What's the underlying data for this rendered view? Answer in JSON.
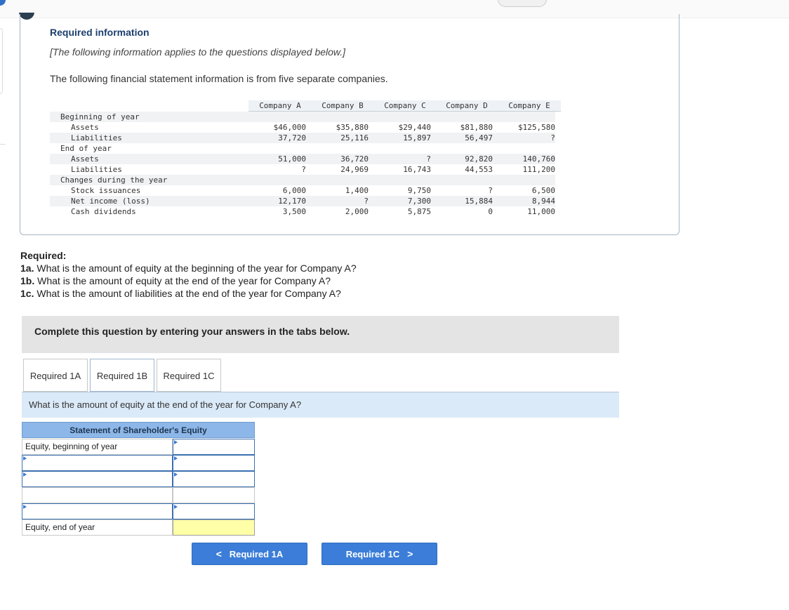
{
  "info": {
    "title": "Required information",
    "note": "[The following information applies to the questions displayed below.]",
    "description": "The following financial statement information is from five separate companies."
  },
  "financials": {
    "companies": [
      "Company A",
      "Company B",
      "Company C",
      "Company D",
      "Company E"
    ],
    "rows": [
      {
        "label": "Beginning of year",
        "indent": 0,
        "values": [
          "",
          "",
          "",
          "",
          ""
        ]
      },
      {
        "label": "Assets",
        "indent": 1,
        "values": [
          "$46,000",
          "$35,880",
          "$29,440",
          "$81,880",
          "$125,580"
        ]
      },
      {
        "label": "Liabilities",
        "indent": 1,
        "values": [
          "37,720",
          "25,116",
          "15,897",
          "56,497",
          "?"
        ]
      },
      {
        "label": "End of year",
        "indent": 0,
        "values": [
          "",
          "",
          "",
          "",
          ""
        ]
      },
      {
        "label": "Assets",
        "indent": 1,
        "values": [
          "51,000",
          "36,720",
          "?",
          "92,820",
          "140,760"
        ]
      },
      {
        "label": "Liabilities",
        "indent": 1,
        "values": [
          "?",
          "24,969",
          "16,743",
          "44,553",
          "111,200"
        ]
      },
      {
        "label": "Changes during the year",
        "indent": 0,
        "values": [
          "",
          "",
          "",
          "",
          ""
        ]
      },
      {
        "label": "Stock issuances",
        "indent": 1,
        "values": [
          "6,000",
          "1,400",
          "9,750",
          "?",
          "6,500"
        ]
      },
      {
        "label": "Net income (loss)",
        "indent": 1,
        "values": [
          "12,170",
          "?",
          "7,300",
          "15,884",
          "8,944"
        ]
      },
      {
        "label": "Cash dividends",
        "indent": 1,
        "values": [
          "3,500",
          "2,000",
          "5,875",
          "0",
          "11,000"
        ]
      }
    ]
  },
  "required": {
    "heading": "Required:",
    "items": [
      {
        "tag": "1a.",
        "text": " What is the amount of equity at the beginning of the year for Company A?"
      },
      {
        "tag": "1b.",
        "text": " What is the amount of equity at the end of the year for Company A?"
      },
      {
        "tag": "1c.",
        "text": " What is the amount of liabilities at the end of the year for Company A?"
      }
    ]
  },
  "banner": "Complete this question by entering your answers in the tabs below.",
  "tabs": [
    {
      "label": "Required 1A",
      "active": false
    },
    {
      "label": "Required 1B",
      "active": true
    },
    {
      "label": "Required 1C",
      "active": false
    }
  ],
  "question": "What is the amount of equity at the end of the year for Company A?",
  "statement": {
    "title": "Statement of Shareholder's Equity",
    "rows": [
      {
        "label": "Equity, beginning of year",
        "label_value": "",
        "amount": ""
      },
      {
        "label": "",
        "label_value": "",
        "amount": ""
      },
      {
        "label": "",
        "label_value": "",
        "amount": ""
      },
      {
        "label": "",
        "label_value": "",
        "amount": ""
      },
      {
        "label": "",
        "label_value": "",
        "amount": ""
      },
      {
        "label": "Equity, end of year",
        "label_value": "",
        "amount": ""
      }
    ]
  },
  "nav": {
    "prev_label": "Required 1A",
    "next_label": "Required 1C",
    "prev_chevron": "<",
    "next_chevron": ">"
  }
}
